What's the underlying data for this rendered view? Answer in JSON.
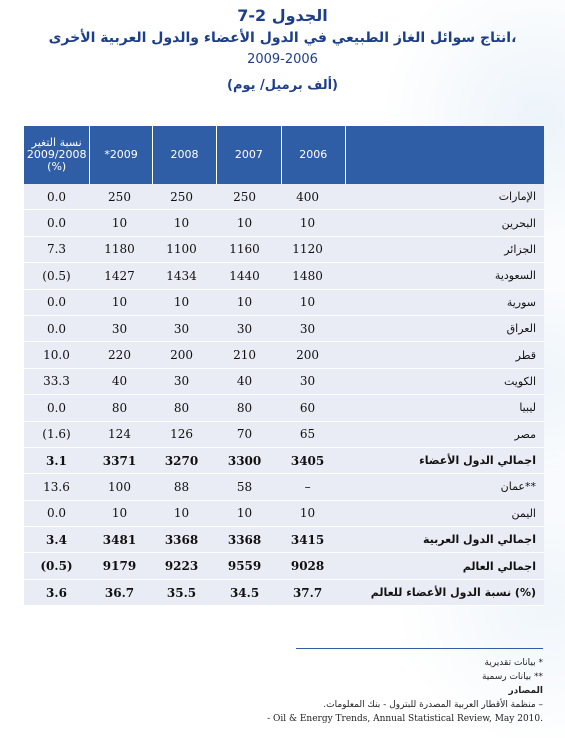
{
  "title": {
    "line1": "الجدول 2-7",
    "line2": "انتاج سوائل الغاز الطبيعي في الدول الأعضاء والدول العربية الأخرى،",
    "line3": "2009-2006",
    "unit": "(ألف برميل/ يوم)"
  },
  "table": {
    "headers": {
      "change": "نسبة التغير 2009/2008 (%)",
      "y2009": "*2009",
      "y2008": "2008",
      "y2007": "2007",
      "y2006": "2006",
      "label": ""
    },
    "rows": [
      {
        "label": "الإمارات",
        "change": "0.0",
        "y2009": "250",
        "y2008": "250",
        "y2007": "250",
        "y2006": "400",
        "total": false
      },
      {
        "label": "البحرين",
        "change": "0.0",
        "y2009": "10",
        "y2008": "10",
        "y2007": "10",
        "y2006": "10",
        "total": false
      },
      {
        "label": "الجزائر",
        "change": "7.3",
        "y2009": "1180",
        "y2008": "1100",
        "y2007": "1160",
        "y2006": "1120",
        "total": false
      },
      {
        "label": "السعودية",
        "change": "(0.5)",
        "y2009": "1427",
        "y2008": "1434",
        "y2007": "1440",
        "y2006": "1480",
        "total": false
      },
      {
        "label": "سورية",
        "change": "0.0",
        "y2009": "10",
        "y2008": "10",
        "y2007": "10",
        "y2006": "10",
        "total": false
      },
      {
        "label": "العراق",
        "change": "0.0",
        "y2009": "30",
        "y2008": "30",
        "y2007": "30",
        "y2006": "30",
        "total": false
      },
      {
        "label": "قطر",
        "change": "10.0",
        "y2009": "220",
        "y2008": "200",
        "y2007": "210",
        "y2006": "200",
        "total": false
      },
      {
        "label": "الكويت",
        "change": "33.3",
        "y2009": "40",
        "y2008": "30",
        "y2007": "40",
        "y2006": "30",
        "total": false
      },
      {
        "label": "ليبيا",
        "change": "0.0",
        "y2009": "80",
        "y2008": "80",
        "y2007": "80",
        "y2006": "60",
        "total": false
      },
      {
        "label": "مصر",
        "change": "(1.6)",
        "y2009": "124",
        "y2008": "126",
        "y2007": "70",
        "y2006": "65",
        "total": false
      },
      {
        "label": "اجمالي الدول الأعضاء",
        "change": "3.1",
        "y2009": "3371",
        "y2008": "3270",
        "y2007": "3300",
        "y2006": "3405",
        "total": true
      },
      {
        "label": "عمان**",
        "change": "13.6",
        "y2009": "100",
        "y2008": "88",
        "y2007": "58",
        "y2006": "–",
        "total": false
      },
      {
        "label": "اليمن",
        "change": "0.0",
        "y2009": "10",
        "y2008": "10",
        "y2007": "10",
        "y2006": "10",
        "total": false
      },
      {
        "label": "اجمالي الدول العربية",
        "change": "3.4",
        "y2009": "3481",
        "y2008": "3368",
        "y2007": "3368",
        "y2006": "3415",
        "total": true
      },
      {
        "label": "اجمالي العالم",
        "change": "(0.5)",
        "y2009": "9179",
        "y2008": "9223",
        "y2007": "9559",
        "y2006": "9028",
        "total": true
      },
      {
        "label": "نسبة الدول الأعضاء للعالم (%)",
        "change": "3.6",
        "y2009": "36.7",
        "y2008": "35.5",
        "y2007": "34.5",
        "y2006": "37.7",
        "total": true
      }
    ]
  },
  "notes": {
    "n1": "* بيانات تقديرية",
    "n2": "** بيانات رسمية",
    "sources": "المصادر",
    "s1": "– منظمة الأقطار العربية المصدرة للبترول - بنك المعلومات.",
    "s2": "- Oil & Energy Trends, Annual Statistical Review, May 2010."
  }
}
